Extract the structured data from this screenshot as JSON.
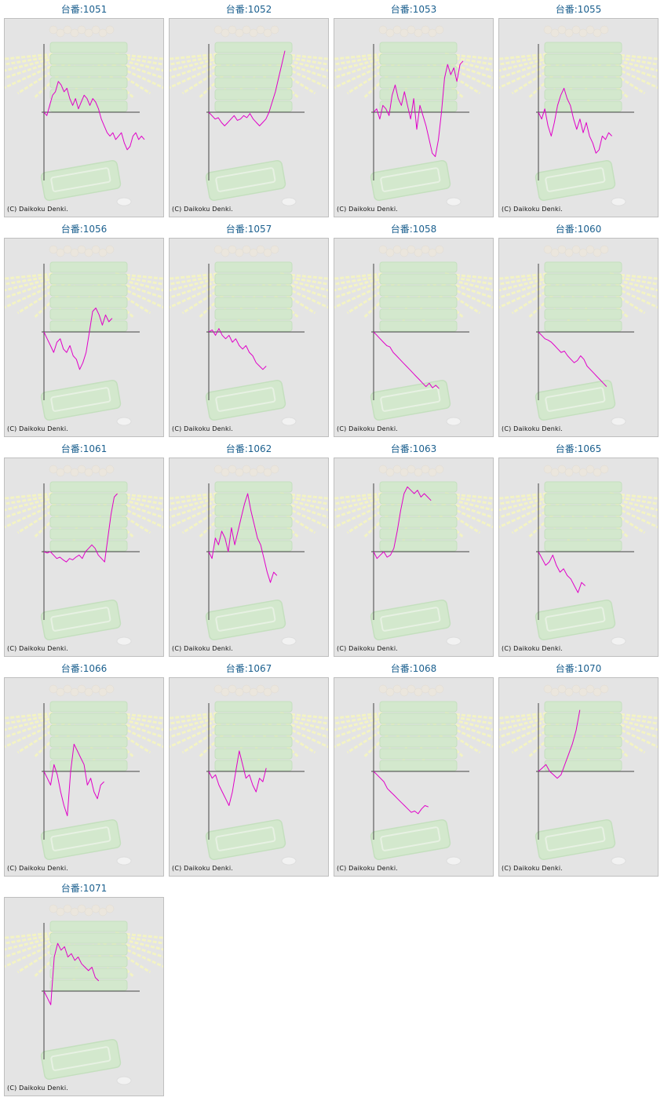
{
  "title_prefix": "台番:",
  "copyright": "(C) Daikoku Denki.",
  "colors": {
    "line": "#e000c8",
    "axis": "#444444",
    "title": "#1a5f8e",
    "panel_bg": "#e4e4e4"
  },
  "chart_data": [
    {
      "type": "line",
      "label": "台番:1051",
      "values": [
        0,
        -0.05,
        0.1,
        0.25,
        0.3,
        0.45,
        0.4,
        0.3,
        0.35,
        0.2,
        0.1,
        0.2,
        0.05,
        0.15,
        0.25,
        0.2,
        0.1,
        0.2,
        0.15,
        0.05,
        -0.1,
        -0.2,
        -0.3,
        -0.35,
        -0.3,
        -0.4,
        -0.35,
        -0.3,
        -0.45,
        -0.55,
        -0.5,
        -0.35,
        -0.3,
        -0.4,
        -0.35,
        -0.4
      ]
    },
    {
      "type": "line",
      "label": "台番:1052",
      "values": [
        0,
        -0.05,
        -0.1,
        -0.08,
        -0.15,
        -0.2,
        -0.15,
        -0.1,
        -0.05,
        -0.12,
        -0.1,
        -0.05,
        -0.08,
        -0.02,
        -0.1,
        -0.15,
        -0.2,
        -0.15,
        -0.1,
        0.0,
        0.15,
        0.3,
        0.5,
        0.7,
        0.9
      ]
    },
    {
      "type": "line",
      "label": "台番:1053",
      "values": [
        0,
        0.05,
        -0.1,
        0.1,
        0.05,
        -0.05,
        0.25,
        0.4,
        0.2,
        0.1,
        0.3,
        0.1,
        -0.1,
        0.2,
        -0.25,
        0.1,
        -0.05,
        -0.2,
        -0.4,
        -0.6,
        -0.65,
        -0.4,
        0.0,
        0.5,
        0.7,
        0.55,
        0.65,
        0.45,
        0.7,
        0.75
      ]
    },
    {
      "type": "line",
      "label": "台番:1055",
      "values": [
        0,
        -0.1,
        0.05,
        -0.2,
        -0.35,
        -0.15,
        0.1,
        0.25,
        0.35,
        0.2,
        0.1,
        -0.1,
        -0.25,
        -0.1,
        -0.3,
        -0.15,
        -0.35,
        -0.45,
        -0.6,
        -0.55,
        -0.35,
        -0.4,
        -0.3,
        -0.35
      ]
    },
    {
      "type": "line",
      "label": "台番:1056",
      "values": [
        0,
        -0.1,
        -0.2,
        -0.3,
        -0.15,
        -0.1,
        -0.25,
        -0.3,
        -0.2,
        -0.35,
        -0.4,
        -0.55,
        -0.45,
        -0.3,
        0.0,
        0.3,
        0.35,
        0.25,
        0.1,
        0.25,
        0.15,
        0.2
      ]
    },
    {
      "type": "line",
      "label": "台番:1057",
      "values": [
        0,
        0.03,
        -0.05,
        0.05,
        -0.05,
        -0.1,
        -0.05,
        -0.15,
        -0.1,
        -0.2,
        -0.25,
        -0.2,
        -0.3,
        -0.35,
        -0.45,
        -0.5,
        -0.55,
        -0.5
      ]
    },
    {
      "type": "line",
      "label": "台番:1058",
      "values": [
        0,
        -0.05,
        -0.1,
        -0.15,
        -0.2,
        -0.22,
        -0.3,
        -0.35,
        -0.4,
        -0.45,
        -0.5,
        -0.55,
        -0.6,
        -0.65,
        -0.7,
        -0.75,
        -0.8,
        -0.75,
        -0.82,
        -0.78,
        -0.83
      ]
    },
    {
      "type": "line",
      "label": "台番:1060",
      "values": [
        0,
        -0.05,
        -0.1,
        -0.12,
        -0.15,
        -0.2,
        -0.25,
        -0.3,
        -0.28,
        -0.35,
        -0.4,
        -0.45,
        -0.42,
        -0.35,
        -0.4,
        -0.5,
        -0.55,
        -0.6,
        -0.65,
        -0.7,
        -0.75,
        -0.8
      ]
    },
    {
      "type": "line",
      "label": "台番:1061",
      "values": [
        0,
        -0.02,
        0.0,
        -0.05,
        -0.1,
        -0.08,
        -0.12,
        -0.15,
        -0.1,
        -0.12,
        -0.08,
        -0.05,
        -0.1,
        0.0,
        0.05,
        0.1,
        0.05,
        -0.05,
        -0.1,
        -0.15,
        0.2,
        0.55,
        0.8,
        0.85
      ]
    },
    {
      "type": "line",
      "label": "台番:1062",
      "values": [
        0,
        -0.1,
        0.2,
        0.1,
        0.3,
        0.2,
        0.0,
        0.35,
        0.1,
        0.3,
        0.5,
        0.7,
        0.85,
        0.6,
        0.4,
        0.2,
        0.1,
        -0.1,
        -0.3,
        -0.45,
        -0.3,
        -0.35
      ]
    },
    {
      "type": "line",
      "label": "台番:1063",
      "values": [
        0,
        -0.1,
        -0.05,
        0.0,
        -0.08,
        -0.05,
        0.05,
        0.3,
        0.6,
        0.85,
        0.95,
        0.9,
        0.85,
        0.9,
        0.8,
        0.85,
        0.8,
        0.75
      ]
    },
    {
      "type": "line",
      "label": "台番:1065",
      "values": [
        0,
        -0.1,
        -0.2,
        -0.15,
        -0.05,
        -0.2,
        -0.3,
        -0.25,
        -0.35,
        -0.4,
        -0.5,
        -0.6,
        -0.45,
        -0.5
      ]
    },
    {
      "type": "line",
      "label": "台番:1066",
      "values": [
        0,
        -0.1,
        -0.2,
        0.1,
        -0.05,
        -0.3,
        -0.5,
        -0.65,
        0.0,
        0.4,
        0.3,
        0.2,
        0.1,
        -0.2,
        -0.1,
        -0.3,
        -0.4,
        -0.2,
        -0.15
      ]
    },
    {
      "type": "line",
      "label": "台番:1067",
      "values": [
        0,
        -0.1,
        -0.05,
        -0.2,
        -0.3,
        -0.4,
        -0.5,
        -0.3,
        0.0,
        0.3,
        0.1,
        -0.1,
        -0.05,
        -0.2,
        -0.3,
        -0.1,
        -0.15,
        0.05
      ]
    },
    {
      "type": "line",
      "label": "台番:1068",
      "values": [
        0,
        -0.05,
        -0.1,
        -0.15,
        -0.25,
        -0.3,
        -0.35,
        -0.4,
        -0.45,
        -0.5,
        -0.55,
        -0.6,
        -0.58,
        -0.62,
        -0.55,
        -0.5,
        -0.52
      ]
    },
    {
      "type": "line",
      "label": "台番:1070",
      "values": [
        0,
        0.05,
        0.1,
        0.0,
        -0.05,
        -0.1,
        -0.05,
        0.1,
        0.25,
        0.4,
        0.6,
        0.9
      ]
    },
    {
      "type": "line",
      "label": "台番:1071",
      "values": [
        0,
        -0.1,
        -0.2,
        0.5,
        0.7,
        0.6,
        0.65,
        0.5,
        0.55,
        0.45,
        0.5,
        0.4,
        0.35,
        0.3,
        0.35,
        0.2,
        0.15
      ]
    }
  ]
}
